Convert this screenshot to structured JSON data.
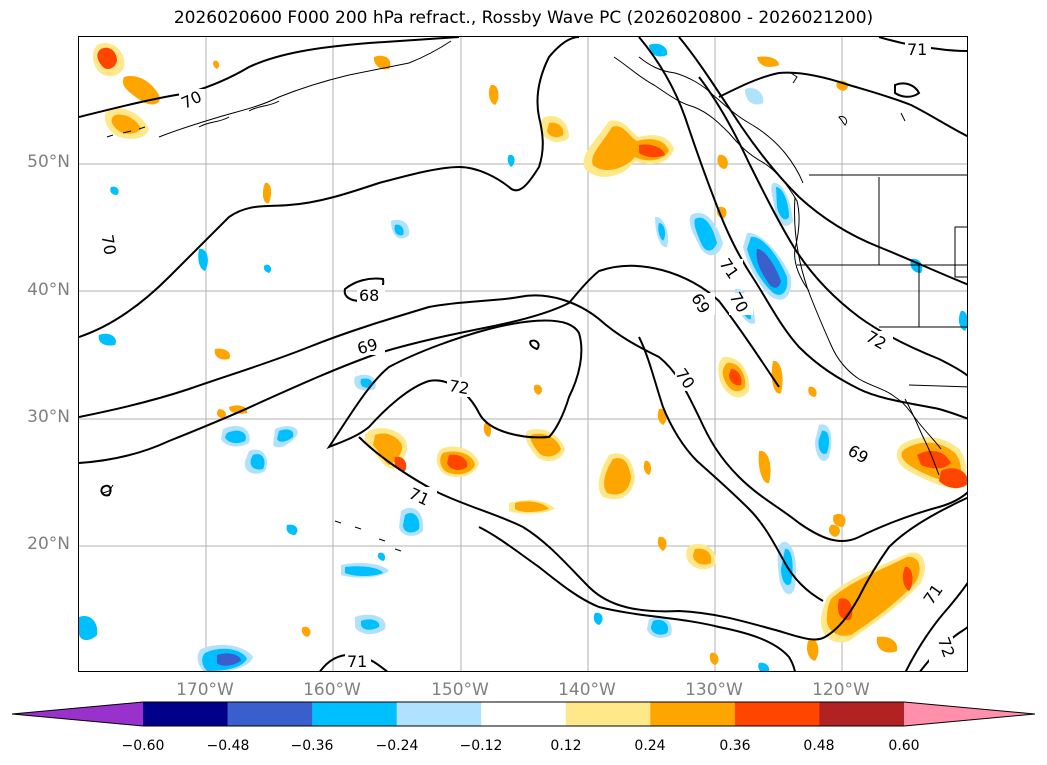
{
  "title": "2026020600 F000 200 hPa refract., Rossby Wave PC (2026020800 - 2026021200)",
  "axes": {
    "lat_labels": [
      "50°N",
      "40°N",
      "30°N",
      "20°N"
    ],
    "lon_labels": [
      "170°W",
      "160°W",
      "150°W",
      "140°W",
      "130°W",
      "120°W"
    ]
  },
  "contour_labels": [
    "70",
    "71",
    "70",
    "68",
    "69",
    "72",
    "71",
    "69",
    "70",
    "70",
    "71",
    "72",
    "69",
    "71",
    "71",
    "72"
  ],
  "colorbar": {
    "ticks": [
      "−0.60",
      "−0.48",
      "−0.36",
      "−0.24",
      "−0.12",
      "0.12",
      "0.24",
      "0.36",
      "0.48",
      "0.60"
    ],
    "colors": [
      "#9932cc",
      "#00008b",
      "#3a5fcd",
      "#00bfff",
      "#b0e2ff",
      "#ffffff",
      "#ffe88a",
      "#ffa500",
      "#ff4500",
      "#b22222",
      "#ff8fab"
    ],
    "extend": "both"
  },
  "shading_colors": {
    "neg_light": "#b0e2ff",
    "neg_mid": "#00bfff",
    "neg_dark": "#3a5fcd",
    "pos_light": "#ffe88a",
    "pos_mid": "#ffa500",
    "pos_dark": "#ff4500"
  }
}
